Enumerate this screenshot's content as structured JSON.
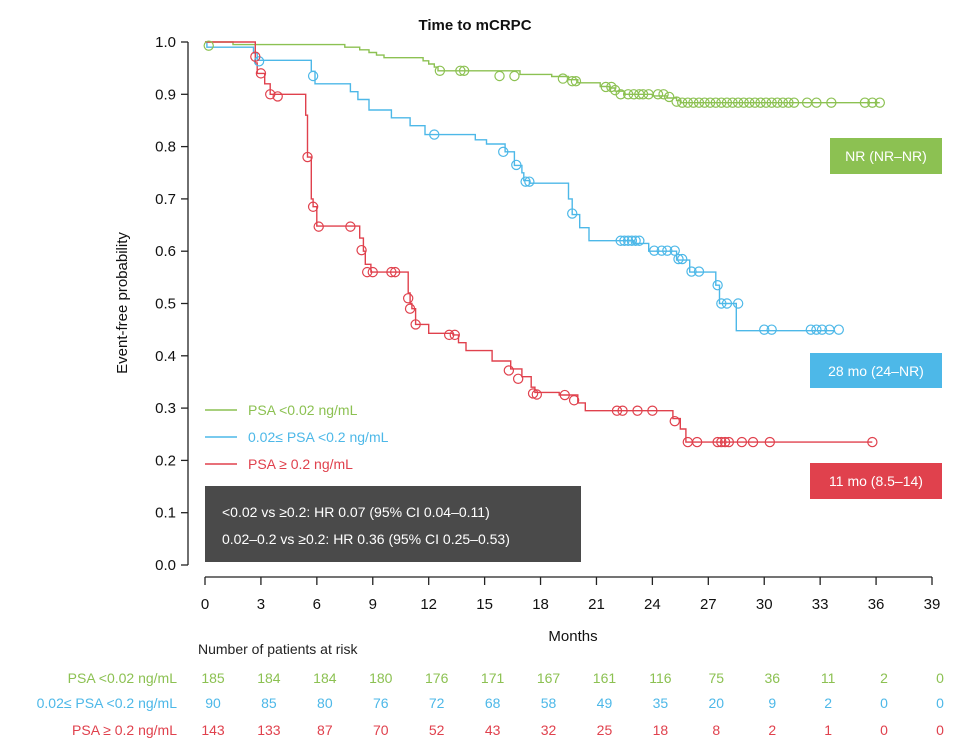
{
  "chart_data": {
    "type": "line",
    "title": "Time to mCRPC",
    "xlabel": "Months",
    "ylabel": "Event-free probability",
    "xlim": [
      0,
      39
    ],
    "ylim": [
      0,
      1
    ],
    "x_ticks": [
      "0",
      "3",
      "6",
      "9",
      "12",
      "15",
      "18",
      "21",
      "24",
      "27",
      "30",
      "33",
      "36",
      "39"
    ],
    "y_ticks": [
      "0.0",
      "0.1",
      "0.2",
      "0.3",
      "0.4",
      "0.5",
      "0.6",
      "0.7",
      "0.8",
      "0.9",
      "1.0"
    ],
    "legend_position": "lower-left",
    "series": [
      {
        "name": "PSA <0.02 ng/mL",
        "color": "#8cc152",
        "median_label": "NR (NR–NR)",
        "steps": [
          [
            0,
            1.0
          ],
          [
            1.5,
            0.995
          ],
          [
            7.5,
            0.99
          ],
          [
            8.3,
            0.985
          ],
          [
            8.8,
            0.98
          ],
          [
            9.2,
            0.975
          ],
          [
            9.6,
            0.97
          ],
          [
            11.7,
            0.964
          ],
          [
            12.0,
            0.958
          ],
          [
            12.3,
            0.952
          ],
          [
            12.5,
            0.945
          ],
          [
            16.9,
            0.938
          ],
          [
            18.6,
            0.934
          ],
          [
            19.5,
            0.928
          ],
          [
            20.0,
            0.922
          ],
          [
            21.2,
            0.915
          ],
          [
            21.7,
            0.912
          ],
          [
            22.0,
            0.906
          ],
          [
            22.5,
            0.9
          ],
          [
            24.0,
            0.897
          ],
          [
            24.8,
            0.893
          ],
          [
            25.3,
            0.888
          ],
          [
            25.5,
            0.884
          ],
          [
            36.2,
            0.884
          ]
        ],
        "censored": [
          [
            0.2,
            0.993
          ],
          [
            12.6,
            0.945
          ],
          [
            13.7,
            0.945
          ],
          [
            13.9,
            0.945
          ],
          [
            15.8,
            0.935
          ],
          [
            16.6,
            0.935
          ],
          [
            19.2,
            0.93
          ],
          [
            19.7,
            0.925
          ],
          [
            19.9,
            0.925
          ],
          [
            21.5,
            0.914
          ],
          [
            21.8,
            0.914
          ],
          [
            22.0,
            0.908
          ],
          [
            22.3,
            0.9
          ],
          [
            22.7,
            0.9
          ],
          [
            23.0,
            0.9
          ],
          [
            23.3,
            0.9
          ],
          [
            23.5,
            0.9
          ],
          [
            23.8,
            0.9
          ],
          [
            24.3,
            0.9
          ],
          [
            24.6,
            0.9
          ],
          [
            24.9,
            0.895
          ],
          [
            25.3,
            0.886
          ],
          [
            25.6,
            0.884
          ],
          [
            25.9,
            0.884
          ],
          [
            26.2,
            0.884
          ],
          [
            26.5,
            0.884
          ],
          [
            26.8,
            0.884
          ],
          [
            27.1,
            0.884
          ],
          [
            27.4,
            0.884
          ],
          [
            27.7,
            0.884
          ],
          [
            28.0,
            0.884
          ],
          [
            28.3,
            0.884
          ],
          [
            28.6,
            0.884
          ],
          [
            28.9,
            0.884
          ],
          [
            29.2,
            0.884
          ],
          [
            29.5,
            0.884
          ],
          [
            29.8,
            0.884
          ],
          [
            30.1,
            0.884
          ],
          [
            30.4,
            0.884
          ],
          [
            30.7,
            0.884
          ],
          [
            31.0,
            0.884
          ],
          [
            31.3,
            0.884
          ],
          [
            31.6,
            0.884
          ],
          [
            32.3,
            0.884
          ],
          [
            32.8,
            0.884
          ],
          [
            33.6,
            0.884
          ],
          [
            35.4,
            0.884
          ],
          [
            35.8,
            0.884
          ],
          [
            36.2,
            0.884
          ]
        ]
      },
      {
        "name": "0.02≤ PSA <0.2 ng/mL",
        "color": "#4db8e8",
        "median_label": "28 mo (24–NR)",
        "steps": [
          [
            0,
            1.0
          ],
          [
            0.1,
            0.99
          ],
          [
            2.6,
            0.979
          ],
          [
            2.8,
            0.965
          ],
          [
            5.7,
            0.944
          ],
          [
            5.9,
            0.92
          ],
          [
            7.8,
            0.905
          ],
          [
            8.2,
            0.89
          ],
          [
            8.8,
            0.87
          ],
          [
            10.0,
            0.855
          ],
          [
            11.0,
            0.84
          ],
          [
            11.8,
            0.823
          ],
          [
            14.5,
            0.813
          ],
          [
            15.1,
            0.805
          ],
          [
            16.1,
            0.79
          ],
          [
            16.6,
            0.764
          ],
          [
            17.0,
            0.75
          ],
          [
            17.1,
            0.735
          ],
          [
            17.4,
            0.73
          ],
          [
            19.5,
            0.7
          ],
          [
            19.7,
            0.67
          ],
          [
            20.1,
            0.645
          ],
          [
            20.6,
            0.62
          ],
          [
            23.0,
            0.615
          ],
          [
            23.8,
            0.6
          ],
          [
            25.3,
            0.583
          ],
          [
            26.0,
            0.56
          ],
          [
            27.4,
            0.535
          ],
          [
            27.6,
            0.5
          ],
          [
            28.5,
            0.448
          ],
          [
            33.8,
            0.448
          ]
        ],
        "censored": [
          [
            2.9,
            0.963
          ],
          [
            5.8,
            0.935
          ],
          [
            12.3,
            0.823
          ],
          [
            16.0,
            0.79
          ],
          [
            16.7,
            0.765
          ],
          [
            17.2,
            0.733
          ],
          [
            17.4,
            0.733
          ],
          [
            19.7,
            0.672
          ],
          [
            22.3,
            0.62
          ],
          [
            22.5,
            0.62
          ],
          [
            22.7,
            0.62
          ],
          [
            22.9,
            0.62
          ],
          [
            23.1,
            0.62
          ],
          [
            23.3,
            0.62
          ],
          [
            24.1,
            0.601
          ],
          [
            24.5,
            0.601
          ],
          [
            24.8,
            0.601
          ],
          [
            25.2,
            0.601
          ],
          [
            25.4,
            0.585
          ],
          [
            25.6,
            0.585
          ],
          [
            26.1,
            0.561
          ],
          [
            26.5,
            0.561
          ],
          [
            27.5,
            0.535
          ],
          [
            27.7,
            0.5
          ],
          [
            28.0,
            0.5
          ],
          [
            28.6,
            0.5
          ],
          [
            30.0,
            0.45
          ],
          [
            30.4,
            0.45
          ],
          [
            32.5,
            0.45
          ],
          [
            32.8,
            0.45
          ],
          [
            33.1,
            0.45
          ],
          [
            33.5,
            0.45
          ],
          [
            34.0,
            0.45
          ]
        ]
      },
      {
        "name": "PSA ≥ 0.2 ng/mL",
        "color": "#e0414d",
        "median_label": "11 mo (8.5–14)",
        "steps": [
          [
            0,
            1.0
          ],
          [
            2.7,
            0.96
          ],
          [
            2.8,
            0.94
          ],
          [
            3.2,
            0.92
          ],
          [
            3.5,
            0.9
          ],
          [
            5.4,
            0.86
          ],
          [
            5.5,
            0.78
          ],
          [
            5.7,
            0.7
          ],
          [
            5.8,
            0.685
          ],
          [
            6.0,
            0.648
          ],
          [
            8.0,
            0.648
          ],
          [
            8.3,
            0.625
          ],
          [
            8.5,
            0.6
          ],
          [
            8.6,
            0.575
          ],
          [
            8.9,
            0.56
          ],
          [
            10.9,
            0.52
          ],
          [
            11.0,
            0.5
          ],
          [
            11.1,
            0.49
          ],
          [
            11.3,
            0.46
          ],
          [
            12.0,
            0.443
          ],
          [
            13.3,
            0.44
          ],
          [
            13.6,
            0.425
          ],
          [
            14.0,
            0.41
          ],
          [
            15.4,
            0.39
          ],
          [
            16.4,
            0.375
          ],
          [
            17.0,
            0.36
          ],
          [
            17.5,
            0.34
          ],
          [
            17.7,
            0.33
          ],
          [
            19.0,
            0.325
          ],
          [
            20.0,
            0.31
          ],
          [
            20.4,
            0.295
          ],
          [
            24.2,
            0.295
          ],
          [
            25.1,
            0.28
          ],
          [
            25.5,
            0.26
          ],
          [
            25.8,
            0.235
          ],
          [
            35.8,
            0.235
          ]
        ],
        "censored": [
          [
            2.7,
            0.972
          ],
          [
            3.0,
            0.94
          ],
          [
            3.5,
            0.9
          ],
          [
            3.9,
            0.896
          ],
          [
            5.5,
            0.78
          ],
          [
            5.8,
            0.685
          ],
          [
            6.1,
            0.647
          ],
          [
            7.8,
            0.647
          ],
          [
            8.4,
            0.602
          ],
          [
            8.7,
            0.56
          ],
          [
            9.0,
            0.56
          ],
          [
            10.0,
            0.56
          ],
          [
            10.2,
            0.56
          ],
          [
            10.9,
            0.51
          ],
          [
            11.0,
            0.49
          ],
          [
            11.3,
            0.46
          ],
          [
            13.1,
            0.44
          ],
          [
            13.4,
            0.44
          ],
          [
            16.3,
            0.372
          ],
          [
            16.8,
            0.356
          ],
          [
            17.6,
            0.328
          ],
          [
            17.8,
            0.326
          ],
          [
            19.3,
            0.325
          ],
          [
            19.8,
            0.315
          ],
          [
            22.1,
            0.295
          ],
          [
            22.4,
            0.295
          ],
          [
            23.2,
            0.295
          ],
          [
            24.0,
            0.295
          ],
          [
            25.2,
            0.275
          ],
          [
            25.9,
            0.235
          ],
          [
            26.4,
            0.235
          ],
          [
            27.5,
            0.235
          ],
          [
            27.7,
            0.235
          ],
          [
            27.9,
            0.235
          ],
          [
            28.1,
            0.235
          ],
          [
            28.8,
            0.235
          ],
          [
            29.4,
            0.235
          ],
          [
            30.3,
            0.235
          ],
          [
            35.8,
            0.235
          ]
        ]
      }
    ],
    "hr_box": {
      "line1": "<0.02 vs ≥0.2: HR 0.07 (95% CI 0.04–0.11)",
      "line2": "0.02–0.2 vs ≥0.2: HR 0.36 (95% CI 0.25–0.53)",
      "color": "#4a4a4a"
    },
    "risk_table": {
      "title": "Number of patients at risk",
      "times": [
        0,
        3,
        6,
        9,
        12,
        15,
        18,
        21,
        24,
        27,
        30,
        33,
        36,
        39
      ],
      "rows": [
        {
          "label": "PSA <0.02 ng/mL",
          "color": "#8cc152",
          "values": [
            "185",
            "184",
            "184",
            "180",
            "176",
            "171",
            "167",
            "161",
            "116",
            "75",
            "36",
            "11",
            "2",
            "0"
          ]
        },
        {
          "label": "0.02≤ PSA <0.2 ng/mL",
          "color": "#4db8e8",
          "values": [
            "90",
            "85",
            "80",
            "76",
            "72",
            "68",
            "58",
            "49",
            "35",
            "20",
            "9",
            "2",
            "0",
            "0"
          ]
        },
        {
          "label": "PSA ≥ 0.2 ng/mL",
          "color": "#e0414d",
          "values": [
            "143",
            "133",
            "87",
            "70",
            "52",
            "43",
            "32",
            "25",
            "18",
            "8",
            "2",
            "1",
            "0",
            "0"
          ]
        }
      ]
    }
  }
}
